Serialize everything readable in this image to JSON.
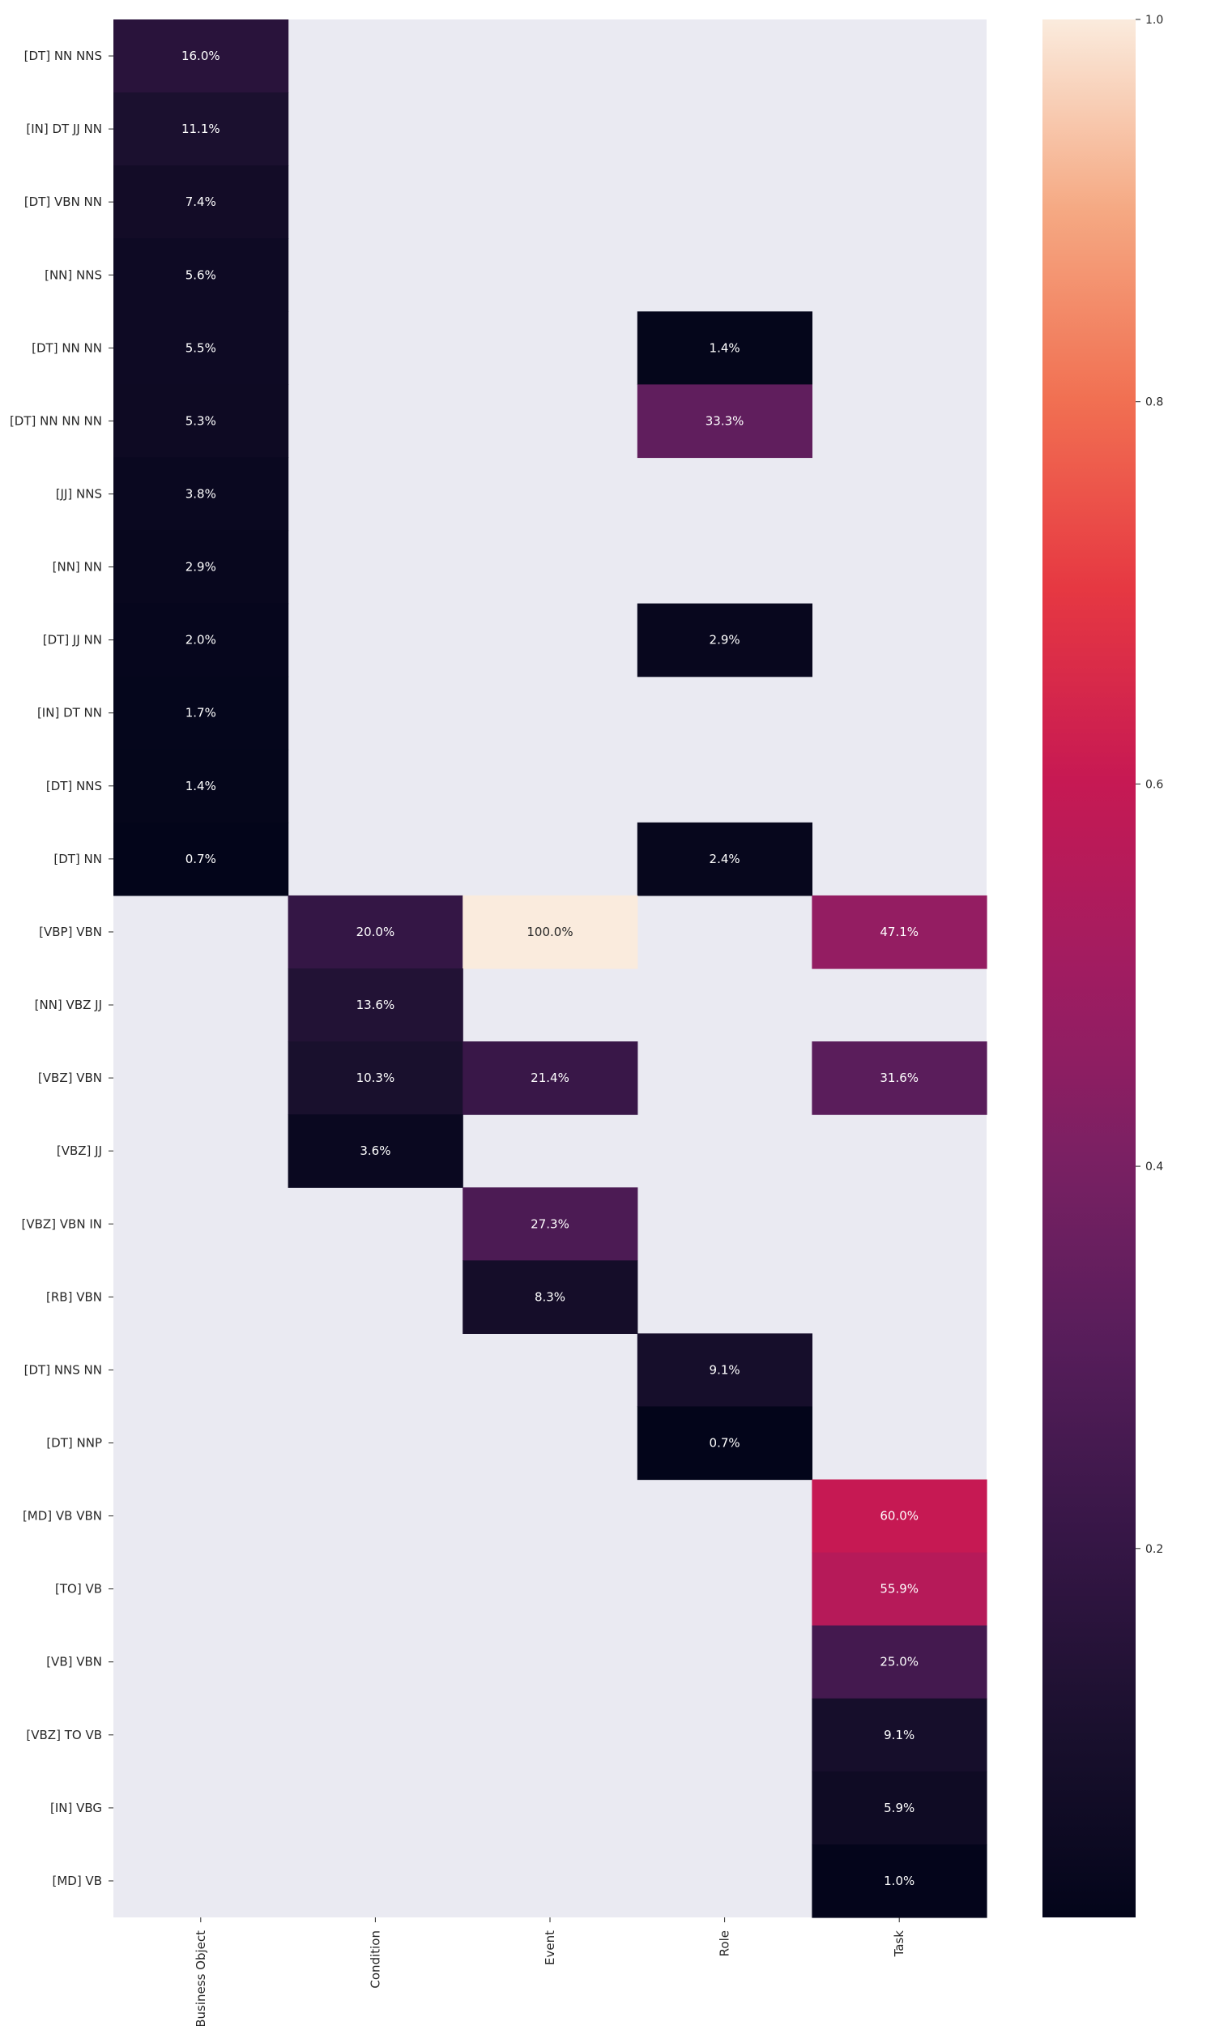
{
  "chart_data": {
    "type": "heatmap",
    "title": "",
    "xlabel": "",
    "ylabel": "",
    "columns": [
      "Business Object",
      "Condition",
      "Event",
      "Role",
      "Task"
    ],
    "rows": [
      "[DT] NN NNS",
      "[IN] DT JJ NN",
      "[DT] VBN NN",
      "[NN] NNS",
      "[DT] NN NN",
      "[DT] NN NN NN",
      "[JJ] NNS",
      "[NN] NN",
      "[DT] JJ NN",
      "[IN] DT NN",
      "[DT] NNS",
      "[DT] NN",
      "[VBP] VBN",
      "[NN] VBZ JJ",
      "[VBZ] VBN",
      "[VBZ] JJ",
      "[VBZ] VBN IN",
      "[RB] VBN",
      "[DT] NNS NN",
      "[DT] NNP",
      "[MD] VB VBN",
      "[TO] VB",
      "[VB] VBN",
      "[VBZ] TO VB",
      "[IN] VBG",
      "[MD] VB"
    ],
    "values": [
      [
        0.16,
        null,
        null,
        null,
        null
      ],
      [
        0.111,
        null,
        null,
        null,
        null
      ],
      [
        0.074,
        null,
        null,
        null,
        null
      ],
      [
        0.056,
        null,
        null,
        null,
        null
      ],
      [
        0.055,
        null,
        null,
        0.014,
        null
      ],
      [
        0.053,
        null,
        null,
        0.333,
        null
      ],
      [
        0.038,
        null,
        null,
        null,
        null
      ],
      [
        0.029,
        null,
        null,
        null,
        null
      ],
      [
        0.02,
        null,
        null,
        0.029,
        null
      ],
      [
        0.017,
        null,
        null,
        null,
        null
      ],
      [
        0.014,
        null,
        null,
        null,
        null
      ],
      [
        0.007,
        null,
        null,
        0.024,
        null
      ],
      [
        null,
        0.2,
        1.0,
        null,
        0.471
      ],
      [
        null,
        0.136,
        null,
        null,
        null
      ],
      [
        null,
        0.103,
        0.214,
        null,
        0.316
      ],
      [
        null,
        0.036,
        null,
        null,
        null
      ],
      [
        null,
        null,
        0.273,
        null,
        null
      ],
      [
        null,
        null,
        0.083,
        null,
        null
      ],
      [
        null,
        null,
        null,
        0.091,
        null
      ],
      [
        null,
        null,
        null,
        0.007,
        null
      ],
      [
        null,
        null,
        null,
        null,
        0.6
      ],
      [
        null,
        null,
        null,
        null,
        0.559
      ],
      [
        null,
        null,
        null,
        null,
        0.25
      ],
      [
        null,
        null,
        null,
        null,
        0.091
      ],
      [
        null,
        null,
        null,
        null,
        0.059
      ],
      [
        null,
        null,
        null,
        null,
        0.01
      ]
    ],
    "cell_labels": [
      [
        "16.0%",
        "",
        "",
        "",
        ""
      ],
      [
        "11.1%",
        "",
        "",
        "",
        ""
      ],
      [
        "7.4%",
        "",
        "",
        "",
        ""
      ],
      [
        "5.6%",
        "",
        "",
        "",
        ""
      ],
      [
        "5.5%",
        "",
        "",
        "1.4%",
        ""
      ],
      [
        "5.3%",
        "",
        "",
        "33.3%",
        ""
      ],
      [
        "3.8%",
        "",
        "",
        "",
        ""
      ],
      [
        "2.9%",
        "",
        "",
        "",
        ""
      ],
      [
        "2.0%",
        "",
        "",
        "2.9%",
        ""
      ],
      [
        "1.7%",
        "",
        "",
        "",
        ""
      ],
      [
        "1.4%",
        "",
        "",
        "",
        ""
      ],
      [
        "0.7%",
        "",
        "",
        "2.4%",
        ""
      ],
      [
        "",
        "20.0%",
        "100.0%",
        "",
        "47.1%"
      ],
      [
        "",
        "13.6%",
        "",
        "",
        ""
      ],
      [
        "",
        "10.3%",
        "21.4%",
        "",
        "31.6%"
      ],
      [
        "",
        "3.6%",
        "",
        "",
        ""
      ],
      [
        "",
        "",
        "27.3%",
        "",
        ""
      ],
      [
        "",
        "",
        "8.3%",
        "",
        ""
      ],
      [
        "",
        "",
        "",
        "9.1%",
        ""
      ],
      [
        "",
        "",
        "",
        "0.7%",
        ""
      ],
      [
        "",
        "",
        "",
        "",
        "60.0%"
      ],
      [
        "",
        "",
        "",
        "",
        "55.9%"
      ],
      [
        "",
        "",
        "",
        "",
        "25.0%"
      ],
      [
        "",
        "",
        "",
        "",
        "9.1%"
      ],
      [
        "",
        "",
        "",
        "",
        "5.9%"
      ],
      [
        "",
        "",
        "",
        "",
        "1.0%"
      ]
    ],
    "colormap": "rocket",
    "colorbar": {
      "vmin": 0.007,
      "vmax": 1.0,
      "ticks": [
        1.0,
        0.8,
        0.6,
        0.4,
        0.2
      ],
      "tick_labels": [
        "1.0",
        "0.8",
        "0.6",
        "0.4",
        "0.2"
      ],
      "placement": "right"
    },
    "missing_color": "#eaeaf2",
    "grid": false
  }
}
